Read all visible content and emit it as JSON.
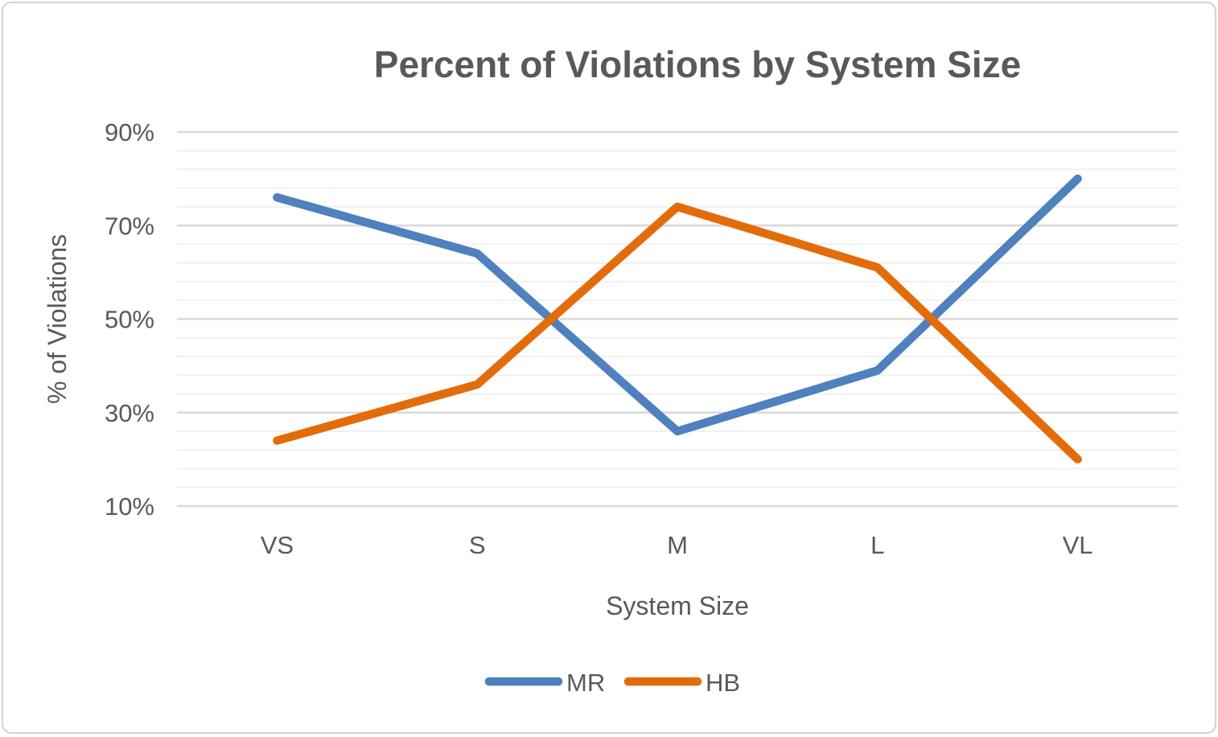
{
  "chart_data": {
    "type": "line",
    "title": "Percent of Violations by System Size",
    "xlabel": "System Size",
    "ylabel": "% of Violations",
    "categories": [
      "VS",
      "S",
      "M",
      "L",
      "VL"
    ],
    "series": [
      {
        "name": "MR",
        "color": "#4E81BD",
        "values": [
          76,
          64,
          26,
          39,
          80
        ]
      },
      {
        "name": "HB",
        "color": "#E36C0A",
        "values": [
          24,
          36,
          74,
          61,
          20
        ]
      }
    ],
    "y_axis": {
      "min": 10,
      "max": 90,
      "major_unit": 20,
      "minor_unit": 4,
      "tick_suffix": "%",
      "tick_labels": [
        "10%",
        "30%",
        "50%",
        "70%",
        "90%"
      ]
    },
    "legend_position": "bottom",
    "grid": {
      "major_color": "#D9D9D9",
      "minor_color": "#F1F1F1",
      "minor_visible": true
    },
    "text_color": "#595959",
    "background_color": "#FFFFFF",
    "border_color": "#D2D2D2"
  }
}
